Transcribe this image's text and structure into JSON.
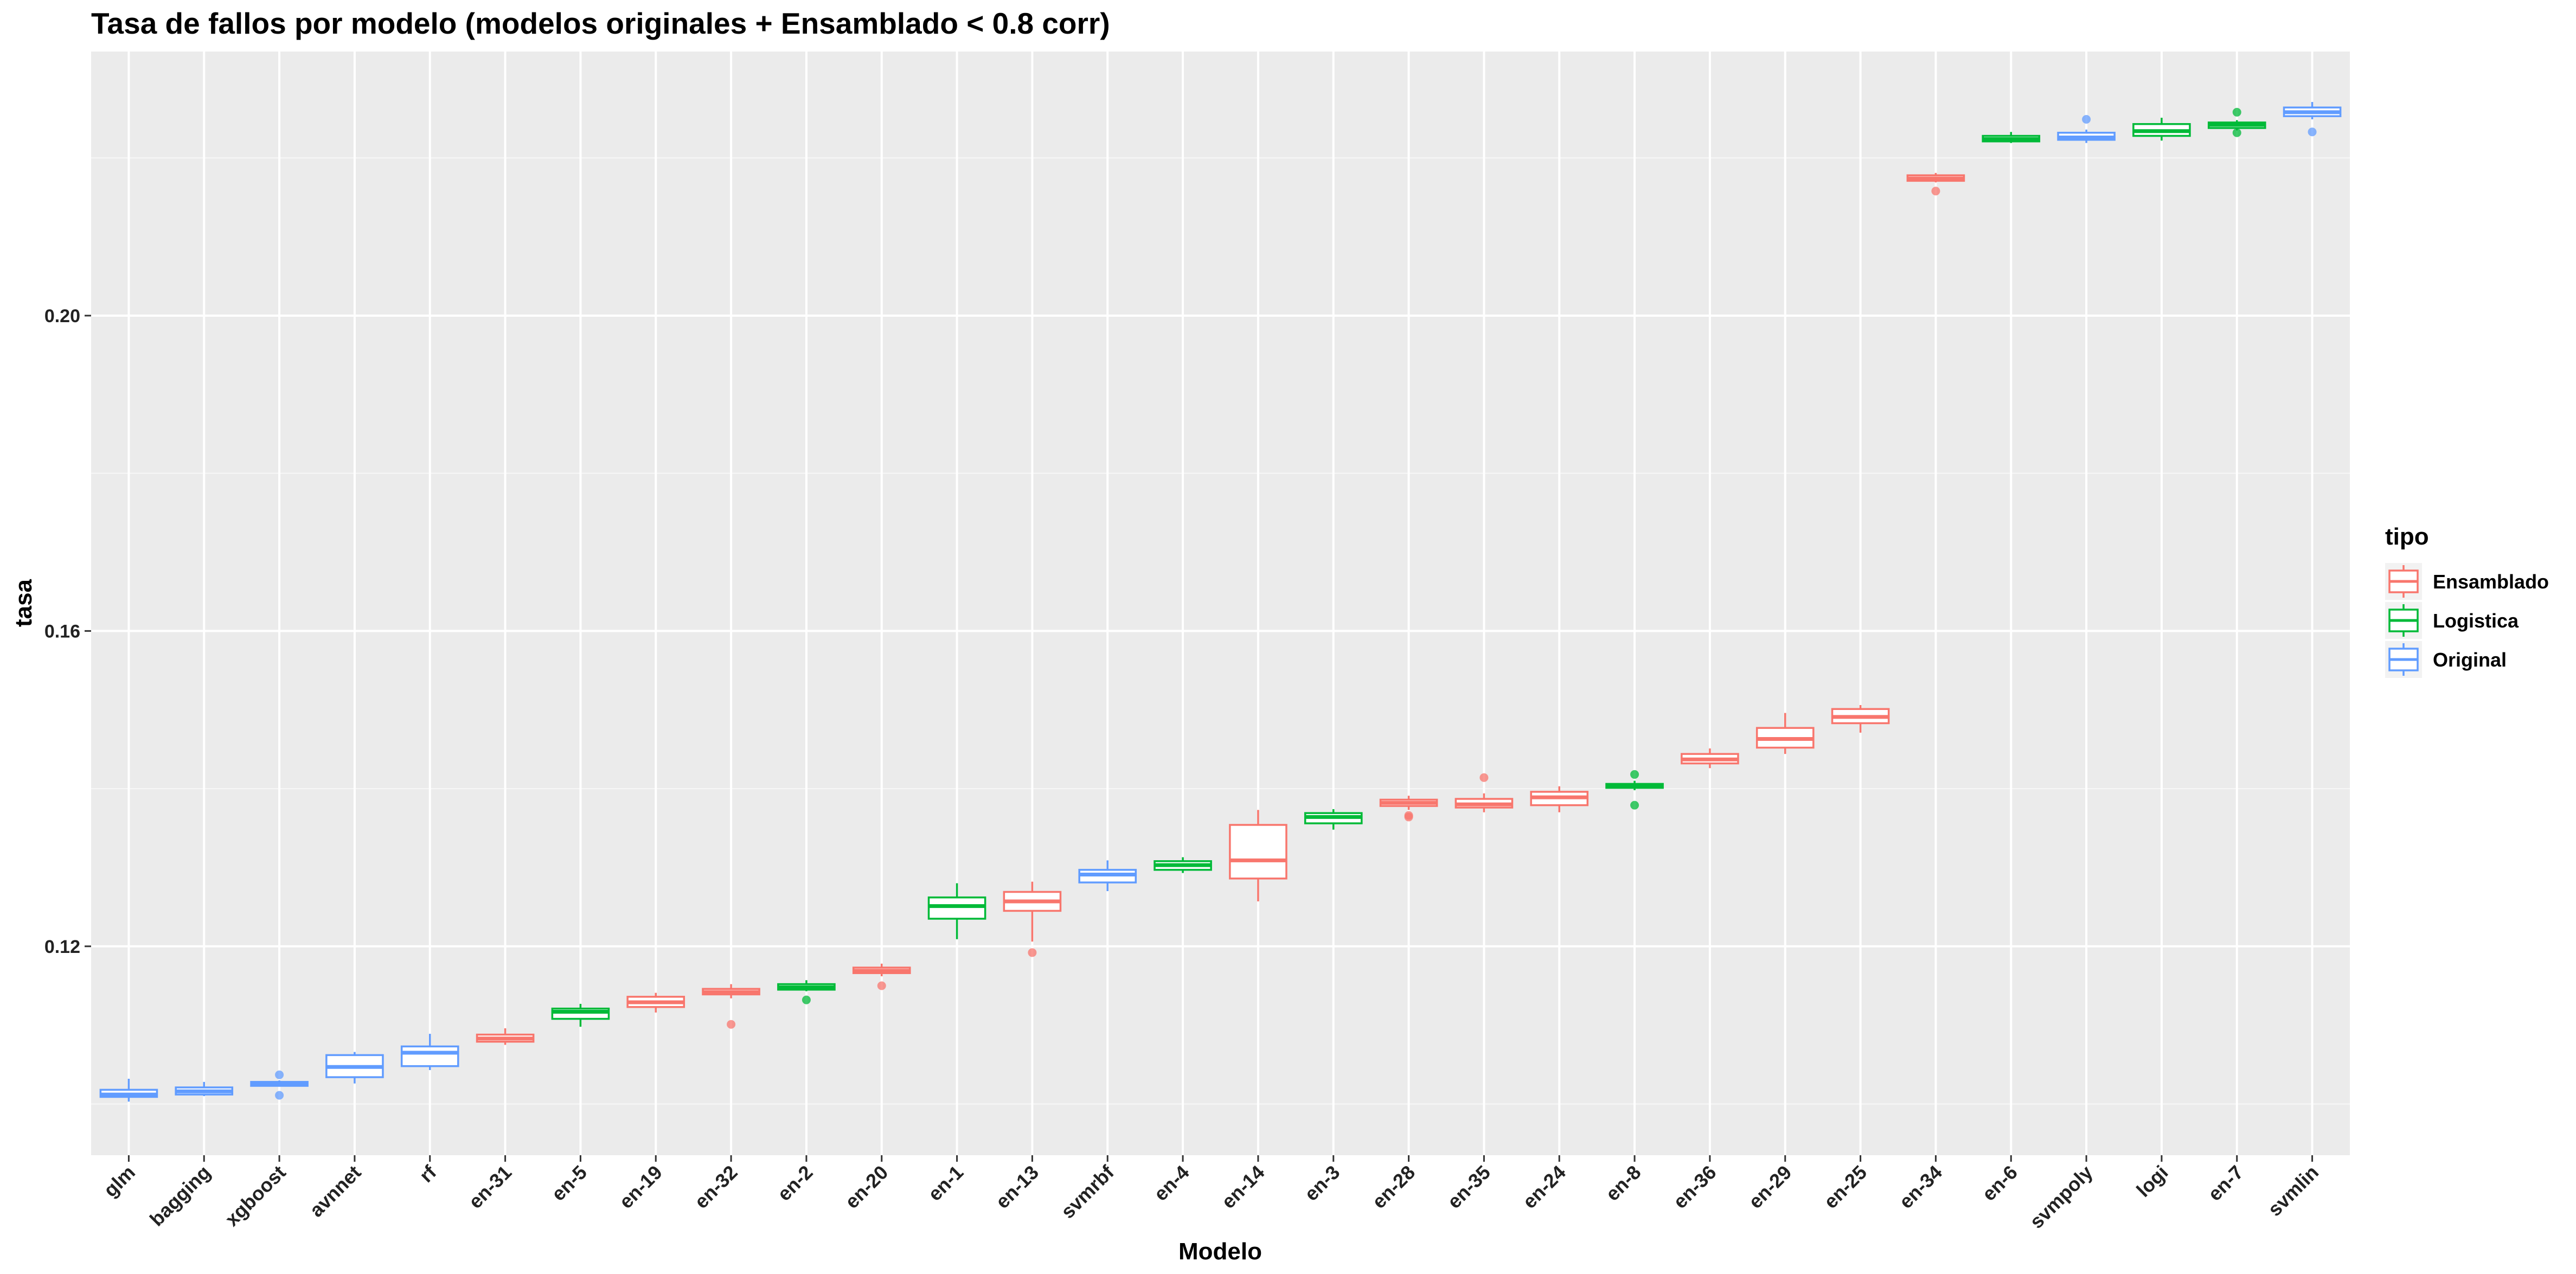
{
  "chart_data": {
    "type": "box",
    "title": "Tasa de fallos por modelo (modelos originales + Ensamblado < 0.8 corr)",
    "xlabel": "Modelo",
    "ylabel": "tasa",
    "ylim": [
      0.0935,
      0.2335
    ],
    "yticks": [
      0.12,
      0.16,
      0.2
    ],
    "ytick_labels": [
      "0.12",
      "0.16",
      "0.20"
    ],
    "grid": true,
    "legend": {
      "title": "tipo",
      "position": "right",
      "entries": [
        {
          "name": "Ensamblado",
          "color": "#F8766D"
        },
        {
          "name": "Logistica",
          "color": "#00BA38"
        },
        {
          "name": "Original",
          "color": "#619CFF"
        }
      ]
    },
    "categories": [
      "glm",
      "bagging",
      "xgboost",
      "avnnet",
      "rf",
      "en-31",
      "en-5",
      "en-19",
      "en-32",
      "en-2",
      "en-20",
      "en-1",
      "en-13",
      "svmrbf",
      "en-4",
      "en-14",
      "en-3",
      "en-28",
      "en-35",
      "en-24",
      "en-8",
      "en-36",
      "en-29",
      "en-25",
      "en-34",
      "en-6",
      "svmpoly",
      "logi",
      "en-7",
      "svmlin"
    ],
    "boxes": [
      {
        "model": "glm",
        "tipo": "Original",
        "min": 0.1003,
        "q1": 0.1009,
        "median": 0.1012,
        "q3": 0.1018,
        "max": 0.1032,
        "outliers": []
      },
      {
        "model": "bagging",
        "tipo": "Original",
        "min": 0.101,
        "q1": 0.1012,
        "median": 0.1016,
        "q3": 0.1021,
        "max": 0.1028,
        "outliers": []
      },
      {
        "model": "xgboost",
        "tipo": "Original",
        "min": 0.1022,
        "q1": 0.1023,
        "median": 0.1026,
        "q3": 0.1028,
        "max": 0.103,
        "outliers": [
          0.1037,
          0.1011
        ]
      },
      {
        "model": "avnnet",
        "tipo": "Original",
        "min": 0.1026,
        "q1": 0.1034,
        "median": 0.1047,
        "q3": 0.1062,
        "max": 0.1066,
        "outliers": []
      },
      {
        "model": "rf",
        "tipo": "Original",
        "min": 0.1043,
        "q1": 0.1048,
        "median": 0.1065,
        "q3": 0.1073,
        "max": 0.1089,
        "outliers": []
      },
      {
        "model": "en-31",
        "tipo": "Ensamblado",
        "min": 0.1075,
        "q1": 0.1079,
        "median": 0.1083,
        "q3": 0.1088,
        "max": 0.1096,
        "outliers": []
      },
      {
        "model": "en-5",
        "tipo": "Logistica",
        "min": 0.1098,
        "q1": 0.1108,
        "median": 0.1117,
        "q3": 0.1121,
        "max": 0.1127,
        "outliers": []
      },
      {
        "model": "en-19",
        "tipo": "Ensamblado",
        "min": 0.1116,
        "q1": 0.1123,
        "median": 0.1129,
        "q3": 0.1136,
        "max": 0.1141,
        "outliers": []
      },
      {
        "model": "en-32",
        "tipo": "Ensamblado",
        "min": 0.1134,
        "q1": 0.1139,
        "median": 0.1142,
        "q3": 0.1146,
        "max": 0.1152,
        "outliers": [
          0.1101
        ]
      },
      {
        "model": "en-2",
        "tipo": "Logistica",
        "min": 0.1143,
        "q1": 0.1145,
        "median": 0.1148,
        "q3": 0.1152,
        "max": 0.1157,
        "outliers": [
          0.1132
        ]
      },
      {
        "model": "en-20",
        "tipo": "Ensamblado",
        "min": 0.1162,
        "q1": 0.1166,
        "median": 0.1169,
        "q3": 0.1173,
        "max": 0.1178,
        "outliers": [
          0.115
        ]
      },
      {
        "model": "en-1",
        "tipo": "Logistica",
        "min": 0.1209,
        "q1": 0.1235,
        "median": 0.1251,
        "q3": 0.1262,
        "max": 0.128,
        "outliers": []
      },
      {
        "model": "en-13",
        "tipo": "Ensamblado",
        "min": 0.1206,
        "q1": 0.1245,
        "median": 0.1257,
        "q3": 0.1269,
        "max": 0.1282,
        "outliers": [
          0.1192
        ]
      },
      {
        "model": "svmrbf",
        "tipo": "Original",
        "min": 0.127,
        "q1": 0.1281,
        "median": 0.1291,
        "q3": 0.1297,
        "max": 0.1309,
        "outliers": []
      },
      {
        "model": "en-4",
        "tipo": "Logistica",
        "min": 0.1293,
        "q1": 0.1297,
        "median": 0.1303,
        "q3": 0.1308,
        "max": 0.1313,
        "outliers": []
      },
      {
        "model": "en-14",
        "tipo": "Ensamblado",
        "min": 0.1257,
        "q1": 0.1286,
        "median": 0.1309,
        "q3": 0.1354,
        "max": 0.1373,
        "outliers": []
      },
      {
        "model": "en-3",
        "tipo": "Logistica",
        "min": 0.1348,
        "q1": 0.1356,
        "median": 0.1364,
        "q3": 0.1369,
        "max": 0.1374,
        "outliers": []
      },
      {
        "model": "en-28",
        "tipo": "Ensamblado",
        "min": 0.1373,
        "q1": 0.1378,
        "median": 0.1382,
        "q3": 0.1386,
        "max": 0.1391,
        "outliers": [
          0.1364,
          0.1366
        ]
      },
      {
        "model": "en-35",
        "tipo": "Ensamblado",
        "min": 0.137,
        "q1": 0.1376,
        "median": 0.138,
        "q3": 0.1387,
        "max": 0.1394,
        "outliers": [
          0.1414
        ]
      },
      {
        "model": "en-24",
        "tipo": "Ensamblado",
        "min": 0.137,
        "q1": 0.1379,
        "median": 0.1389,
        "q3": 0.1396,
        "max": 0.1403,
        "outliers": []
      },
      {
        "model": "en-8",
        "tipo": "Logistica",
        "min": 0.1398,
        "q1": 0.1401,
        "median": 0.1404,
        "q3": 0.1406,
        "max": 0.141,
        "outliers": [
          0.1418,
          0.1379
        ]
      },
      {
        "model": "en-36",
        "tipo": "Ensamblado",
        "min": 0.1426,
        "q1": 0.1432,
        "median": 0.1437,
        "q3": 0.1444,
        "max": 0.1451,
        "outliers": []
      },
      {
        "model": "en-29",
        "tipo": "Ensamblado",
        "min": 0.1444,
        "q1": 0.1452,
        "median": 0.1463,
        "q3": 0.1477,
        "max": 0.1496,
        "outliers": []
      },
      {
        "model": "en-25",
        "tipo": "Ensamblado",
        "min": 0.1471,
        "q1": 0.1483,
        "median": 0.1491,
        "q3": 0.1501,
        "max": 0.1506,
        "outliers": []
      },
      {
        "model": "en-34",
        "tipo": "Ensamblado",
        "min": 0.2169,
        "q1": 0.2171,
        "median": 0.2174,
        "q3": 0.2178,
        "max": 0.2181,
        "outliers": [
          0.2158
        ]
      },
      {
        "model": "en-6",
        "tipo": "Logistica",
        "min": 0.2219,
        "q1": 0.2221,
        "median": 0.2224,
        "q3": 0.2228,
        "max": 0.2233,
        "outliers": []
      },
      {
        "model": "svmpoly",
        "tipo": "Original",
        "min": 0.2219,
        "q1": 0.2223,
        "median": 0.2226,
        "q3": 0.2232,
        "max": 0.2236,
        "outliers": [
          0.2249
        ]
      },
      {
        "model": "logi",
        "tipo": "Logistica",
        "min": 0.2222,
        "q1": 0.2228,
        "median": 0.2234,
        "q3": 0.2243,
        "max": 0.2251,
        "outliers": []
      },
      {
        "model": "en-7",
        "tipo": "Logistica",
        "min": 0.2235,
        "q1": 0.2238,
        "median": 0.2242,
        "q3": 0.2245,
        "max": 0.2248,
        "outliers": [
          0.2258,
          0.2232
        ]
      },
      {
        "model": "svmlin",
        "tipo": "Original",
        "min": 0.2249,
        "q1": 0.2253,
        "median": 0.2258,
        "q3": 0.2264,
        "max": 0.2271,
        "outliers": [
          0.2233
        ]
      }
    ]
  }
}
